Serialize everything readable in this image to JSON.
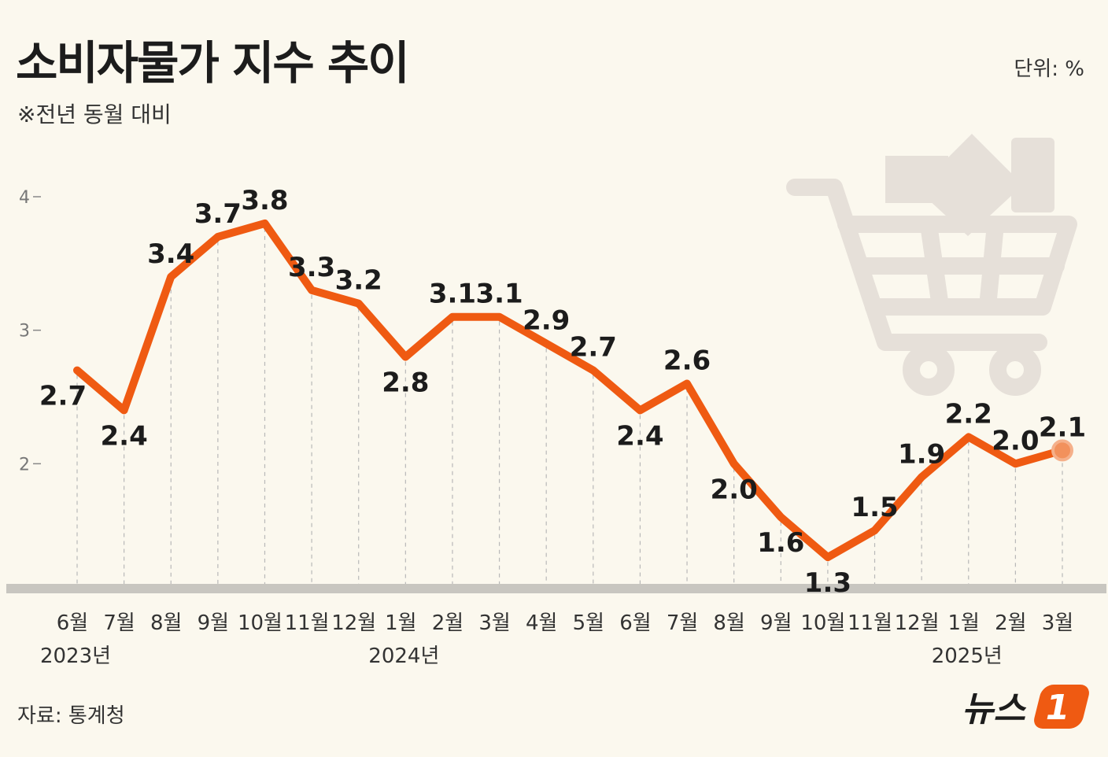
{
  "title": "소비자물가 지수 추이",
  "subtitle": "※전년 동월 대비",
  "unit": "단위: %",
  "source": "자료: 통계청",
  "logo": {
    "text": "뉴스",
    "mark": "1"
  },
  "colors": {
    "line": "#ef5a12",
    "background": "#fbf8ee",
    "cart": "#e6e0d9",
    "lastPoint": "#f2915c",
    "baseline": "#c8c6c0"
  },
  "icons": [
    "shopping-cart-icon"
  ],
  "chart_data": {
    "type": "line",
    "title": "소비자물가 지수 추이",
    "subtitle": "※전년 동월 대비",
    "ylabel": "단위: %",
    "ylim": [
      1.1,
      4.0
    ],
    "yticks": [
      2,
      3,
      4
    ],
    "grid": false,
    "categories": [
      "6월",
      "7월",
      "8월",
      "9월",
      "10월",
      "11월",
      "12월",
      "1월",
      "2월",
      "3월",
      "4월",
      "5월",
      "6월",
      "7월",
      "8월",
      "9월",
      "10월",
      "11월",
      "12월",
      "1월",
      "2월",
      "3월"
    ],
    "years": [
      {
        "label": "2023년",
        "index": 0
      },
      {
        "label": "2024년",
        "index": 7
      },
      {
        "label": "2025년",
        "index": 19
      }
    ],
    "series": [
      {
        "values": [
          2.7,
          2.4,
          3.4,
          3.7,
          3.8,
          3.3,
          3.2,
          2.8,
          3.1,
          3.1,
          2.9,
          2.7,
          2.4,
          2.6,
          2.0,
          1.6,
          1.3,
          1.5,
          1.9,
          2.2,
          2.0,
          2.1
        ]
      }
    ],
    "value_labels": [
      "2.7",
      "2.4",
      "3.4",
      "3.7",
      "3.8",
      "3.3",
      "3.2",
      "2.8",
      "3.1",
      "3.1",
      "2.9",
      "2.7",
      "2.4",
      "2.6",
      "2.0",
      "1.6",
      "1.3",
      "1.5",
      "1.9",
      "2.2",
      "2.0",
      "2.1"
    ],
    "label_positions": [
      "below",
      "below",
      "above",
      "above",
      "above",
      "above",
      "above",
      "below",
      "above",
      "above",
      "above",
      "above",
      "below",
      "above",
      "below",
      "below",
      "below",
      "above",
      "above",
      "above",
      "above",
      "above"
    ]
  }
}
